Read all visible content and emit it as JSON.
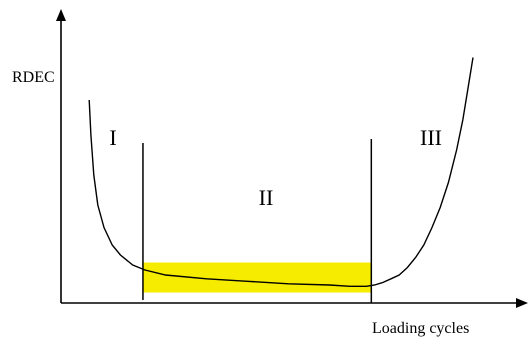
{
  "chart_data": {
    "type": "line",
    "title": "",
    "xlabel": "Loading cycles",
    "ylabel": "RDEC",
    "grid": false,
    "legend": "none",
    "x_units": "normalized fraction of cycles-to-failure (not printed)",
    "y_units": "normalized RDEC (not printed)",
    "xlim": [
      0,
      1
    ],
    "ylim": [
      0,
      1
    ],
    "series": [
      {
        "x": [
          0.064,
          0.068,
          0.075,
          0.085,
          0.1,
          0.12,
          0.14,
          0.17,
          0.2,
          0.25,
          0.35,
          0.45,
          0.55,
          0.65,
          0.7,
          0.74,
          0.76,
          0.78,
          0.8,
          0.82,
          0.84,
          0.86,
          0.88,
          0.9,
          0.92,
          0.94,
          0.96,
          0.975,
          0.985,
          1.0
        ],
        "y": [
          0.8,
          0.66,
          0.5,
          0.38,
          0.29,
          0.22,
          0.18,
          0.14,
          0.12,
          0.1,
          0.085,
          0.075,
          0.065,
          0.06,
          0.055,
          0.055,
          0.06,
          0.07,
          0.085,
          0.1,
          0.13,
          0.17,
          0.22,
          0.29,
          0.37,
          0.47,
          0.6,
          0.72,
          0.82,
          0.97
        ]
      }
    ],
    "regions": [
      {
        "label": "I",
        "x_range": [
          0,
          0.195
        ]
      },
      {
        "label": "II",
        "x_range": [
          0.195,
          0.752
        ]
      },
      {
        "label": "III",
        "x_range": [
          0.752,
          1
        ]
      }
    ],
    "stage_boundaries_x": [
      0.195,
      0.752
    ],
    "highlight": {
      "x_range": [
        0.195,
        0.752
      ],
      "y_range": [
        0.03,
        0.15
      ],
      "color": "#f5ec00"
    },
    "colors": {
      "curve": "#000000",
      "axes": "#000000",
      "highlight": "#f5ec00"
    }
  }
}
